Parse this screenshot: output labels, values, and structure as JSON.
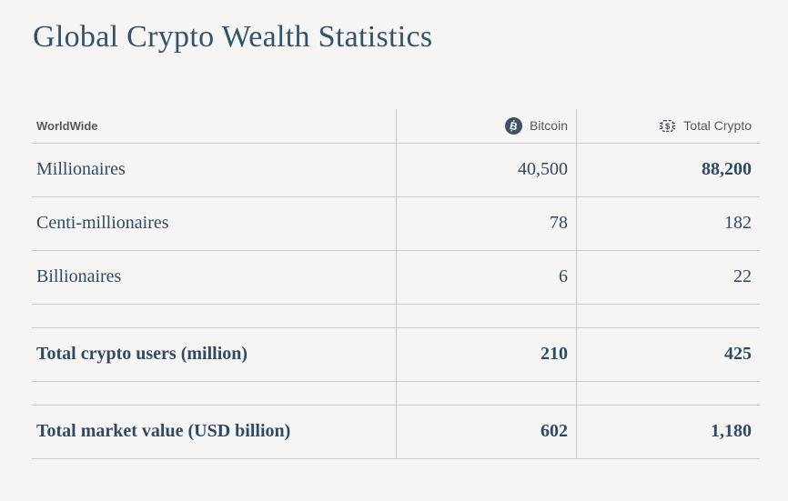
{
  "title": "Global Crypto Wealth Statistics",
  "table": {
    "header": [
      {
        "label": "WorldWide"
      },
      {
        "label": "Bitcoin",
        "icon": "bitcoin-icon"
      },
      {
        "label": "Total Crypto",
        "icon": "chip-dollar-icon"
      }
    ],
    "rows": [
      {
        "label": "Millionaires",
        "bitcoin": "40,500",
        "total_crypto": "88,200",
        "spacer_before": false,
        "bold_cells": [
          "total_crypto"
        ]
      },
      {
        "label": "Centi-millionaires",
        "bitcoin": "78",
        "total_crypto": "182",
        "spacer_before": false,
        "bold_cells": []
      },
      {
        "label": "Billionaires",
        "bitcoin": "6",
        "total_crypto": "22",
        "spacer_before": false,
        "bold_cells": []
      },
      {
        "label": "Total crypto users (million)",
        "bitcoin": "210",
        "total_crypto": "425",
        "spacer_before": true,
        "bold_cells": [
          "label",
          "bitcoin",
          "total_crypto"
        ]
      },
      {
        "label": "Total market value (USD billion)",
        "bitcoin": "602",
        "total_crypto": "1,180",
        "spacer_before": true,
        "bold_cells": [
          "label",
          "bitcoin",
          "total_crypto"
        ]
      }
    ]
  },
  "chart_data": {
    "type": "table",
    "title": "Global Crypto Wealth Statistics",
    "columns": [
      "WorldWide",
      "Bitcoin",
      "Total Crypto"
    ],
    "rows": [
      [
        "Millionaires",
        40500,
        88200
      ],
      [
        "Centi-millionaires",
        78,
        182
      ],
      [
        "Billionaires",
        6,
        22
      ],
      [
        "Total crypto users (million)",
        210,
        425
      ],
      [
        "Total market value (USD billion)",
        602,
        1180
      ]
    ]
  },
  "colors": {
    "background": "#f6f5f4",
    "title_text": "#33536b",
    "table_serif_text": "#2f4a63",
    "header_text": "#54595f",
    "border": "#c9c9c9",
    "bitcoin_icon_fill": "#3e5063",
    "chip_icon_stroke": "#3d4a59"
  }
}
